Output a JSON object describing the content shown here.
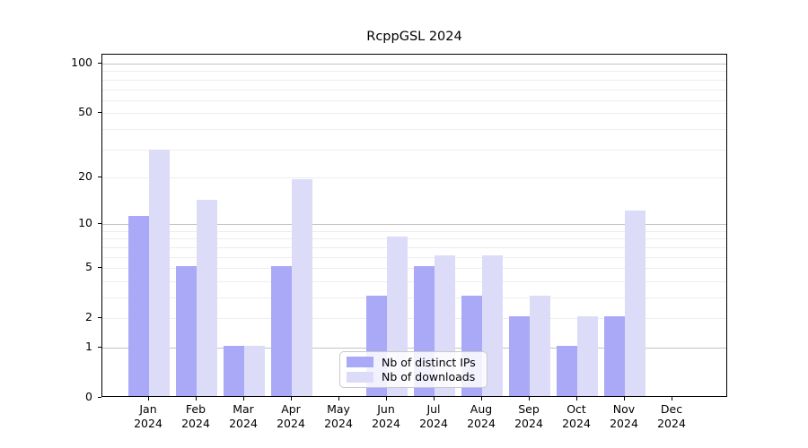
{
  "chart_data": {
    "type": "bar",
    "title": "RcppGSL 2024",
    "x_year": "2024",
    "categories": [
      "Jan",
      "Feb",
      "Mar",
      "Apr",
      "May",
      "Jun",
      "Jul",
      "Aug",
      "Sep",
      "Oct",
      "Nov",
      "Dec"
    ],
    "series": [
      {
        "name": "Nb of distinct IPs",
        "color": "#a9a9f7",
        "values": [
          11,
          5,
          1,
          5,
          0,
          3,
          5,
          3,
          2,
          1,
          2,
          0
        ]
      },
      {
        "name": "Nb of downloads",
        "color": "#dcdcf9",
        "values": [
          29,
          14,
          1,
          19,
          0,
          8,
          6,
          6,
          3,
          2,
          12,
          0
        ]
      }
    ],
    "y_axis": {
      "scale": "log1p",
      "ticks": [
        100,
        50,
        20,
        10,
        5,
        2,
        1,
        0
      ],
      "ylim": [
        0,
        113
      ]
    },
    "grid": {
      "major": [
        1,
        10,
        100
      ],
      "minor": [
        2,
        3,
        4,
        5,
        6,
        7,
        8,
        9,
        20,
        30,
        40,
        50,
        60,
        70,
        80,
        90
      ],
      "major_color": "#c3c3c3",
      "minor_color": "#ededed"
    },
    "legend_position": "lower center"
  }
}
